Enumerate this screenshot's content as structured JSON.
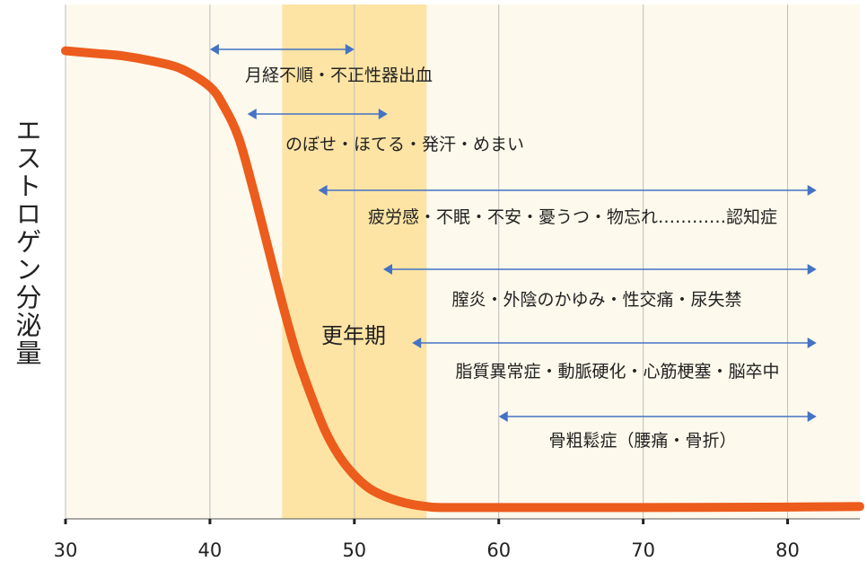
{
  "chart_data": {
    "type": "line",
    "title": "",
    "xlabel": "",
    "ylabel": "エストロゲン分泌量",
    "xlim": [
      30,
      85
    ],
    "ylim": [
      0,
      1
    ],
    "x_ticks": [
      "30",
      "40",
      "50",
      "60",
      "70",
      "80"
    ],
    "grid": true,
    "series": [
      {
        "x": [
          30,
          32,
          34,
          36,
          38,
          40,
          41,
          42,
          43,
          44,
          45,
          46,
          47,
          48,
          49,
          50,
          51,
          52,
          53,
          54,
          55,
          56,
          60,
          70,
          80,
          85
        ],
        "y": [
          0.91,
          0.905,
          0.9,
          0.89,
          0.875,
          0.84,
          0.8,
          0.74,
          0.64,
          0.53,
          0.42,
          0.32,
          0.24,
          0.17,
          0.12,
          0.085,
          0.06,
          0.045,
          0.035,
          0.028,
          0.024,
          0.022,
          0.022,
          0.022,
          0.023,
          0.024
        ]
      }
    ],
    "highlight_band": {
      "label": "更年期",
      "x_start": 45,
      "x_end": 55
    },
    "annotations": [
      {
        "text": "月経不順・不正性器出血",
        "x_start": 40,
        "x_end": 50
      },
      {
        "text": "のぼせ・ほてる・発汗・めまい",
        "x_start": 42.6,
        "x_end": 52.3
      },
      {
        "text": "疲労感・不眠・不安・憂うつ・物忘れ…………認知症",
        "x_start": 47.5,
        "x_end": 82
      },
      {
        "text": "膣炎・外陰のかゆみ・性交痛・尿失禁",
        "x_start": 52,
        "x_end": 82
      },
      {
        "text": "脂質異常症・動脈硬化・心筋梗塞・脳卒中",
        "x_start": 54,
        "x_end": 82
      },
      {
        "text": "骨粗鬆症（腰痛・骨折）",
        "x_start": 60,
        "x_end": 82
      }
    ],
    "colors": {
      "background": "#fdf9ec",
      "band": "#fde4a4",
      "curve": "#ec5c1c",
      "arrow": "#4472c4",
      "grid": "#bdbdbd"
    }
  }
}
